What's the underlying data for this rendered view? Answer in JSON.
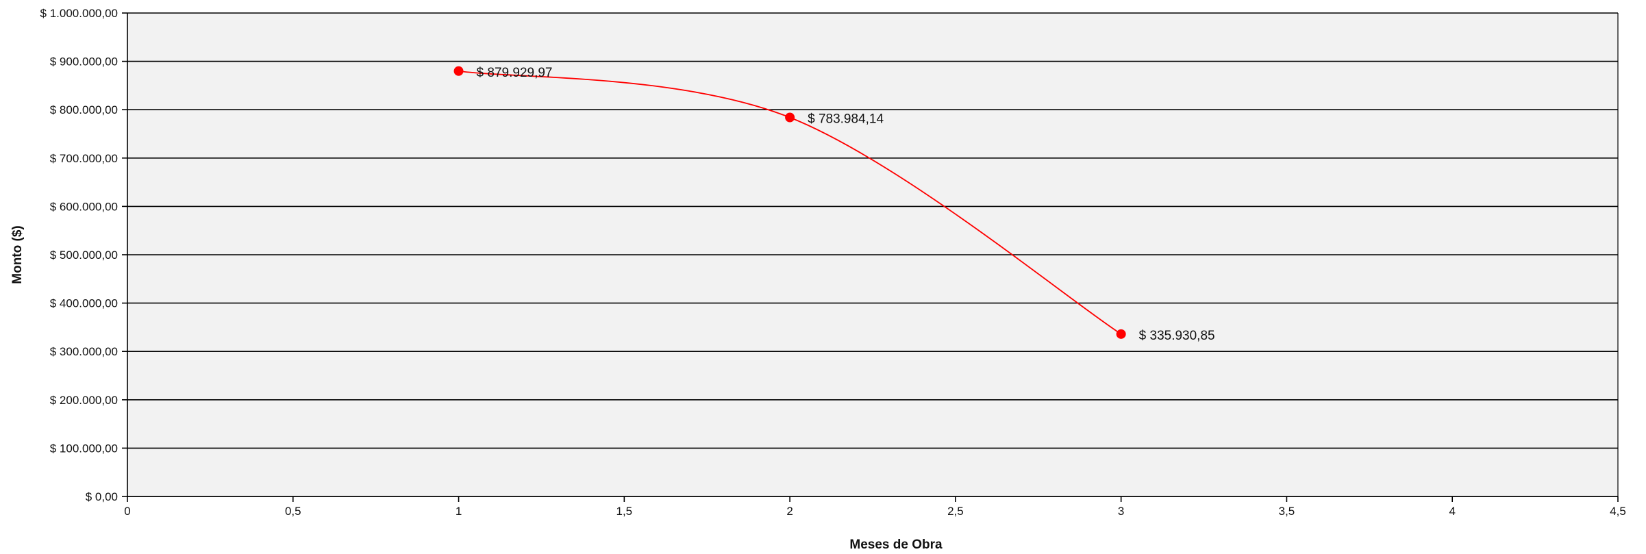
{
  "chart_data": {
    "type": "scatter",
    "title": "",
    "xlabel": "Meses de Obra",
    "ylabel": "Monto ($)",
    "xlim": [
      0,
      4.5
    ],
    "ylim": [
      0,
      1000000
    ],
    "x_ticks": [
      0,
      0.5,
      1,
      1.5,
      2,
      2.5,
      3,
      3.5,
      4,
      4.5
    ],
    "x_tick_labels": [
      "0",
      "0,5",
      "1",
      "1,5",
      "2",
      "2,5",
      "3",
      "3,5",
      "4",
      "4,5"
    ],
    "y_ticks": [
      0,
      100000,
      200000,
      300000,
      400000,
      500000,
      600000,
      700000,
      800000,
      900000,
      1000000
    ],
    "y_tick_labels": [
      "$ 0,00",
      "$ 100.000,00",
      "$ 200.000,00",
      "$ 300.000,00",
      "$ 400.000,00",
      "$ 500.000,00",
      "$ 600.000,00",
      "$ 700.000,00",
      "$ 800.000,00",
      "$ 900.000,00",
      "$ 1.000.000,00"
    ],
    "grid": "horizontal",
    "legend": "none",
    "smooth_line": true,
    "series": [
      {
        "color": "#ff0000",
        "points": [
          {
            "x": 1,
            "y": 879929.97,
            "label": "$ 879.929,97"
          },
          {
            "x": 2,
            "y": 783984.14,
            "label": "$ 783.984,14"
          },
          {
            "x": 3,
            "y": 335930.85,
            "label": "$ 335.930,85"
          }
        ]
      }
    ],
    "plot_background": "#f2f2f2",
    "gridline_color": "#000000"
  }
}
